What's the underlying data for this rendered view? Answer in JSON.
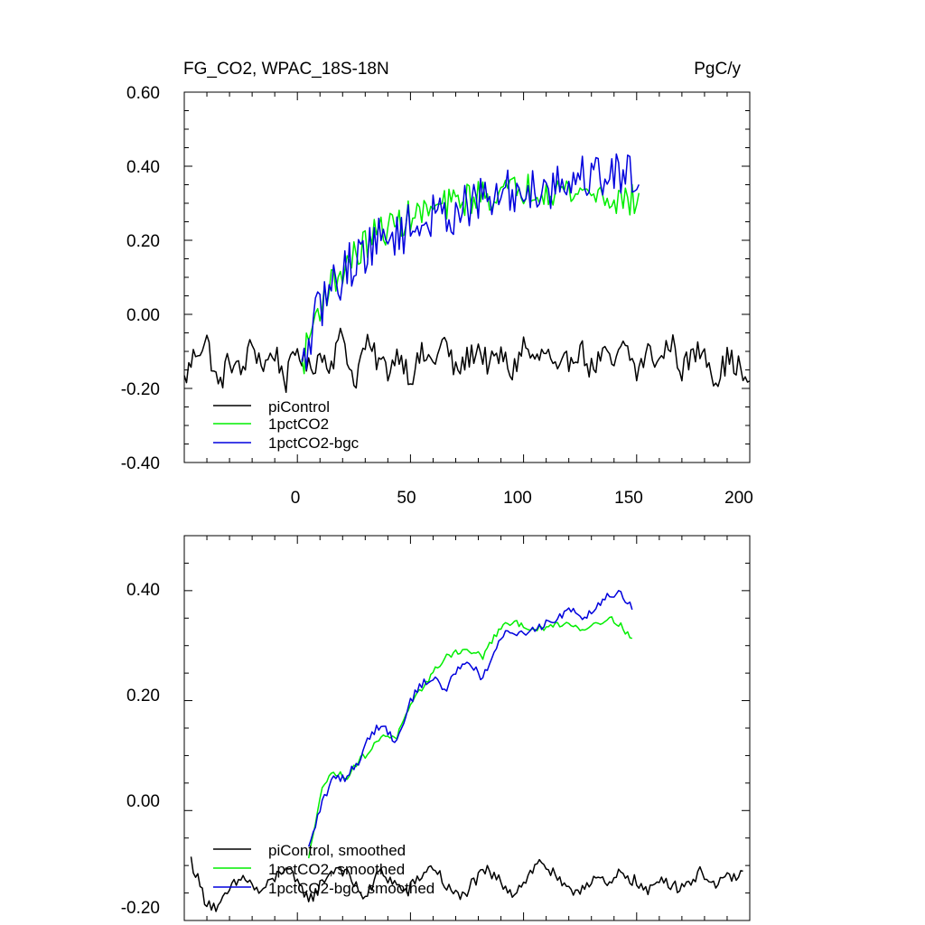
{
  "colors": {
    "piControl": "#000000",
    "onepctCO2": "#00ee00",
    "onepctCO2_bgc": "#0000dd"
  },
  "chart_data": [
    {
      "type": "line",
      "title": "FG_CO2, WPAC_18S-18N",
      "units": "PgC/y",
      "xlim": [
        -50,
        200
      ],
      "ylim": [
        -0.4,
        0.6
      ],
      "x_ticks": [
        "0",
        "50",
        "100",
        "150",
        "200"
      ],
      "y_ticks": [
        "-0.40",
        "-0.20",
        "0.00",
        "0.20",
        "0.40",
        "0.60"
      ],
      "legend_position": "bottom-left",
      "series": [
        {
          "name": "piControl",
          "color": "#000000",
          "x_start": -50,
          "x_end": 200,
          "anchors": [
            -0.18,
            -0.1,
            -0.07,
            -0.2,
            -0.12,
            -0.16,
            -0.08,
            -0.14,
            -0.1,
            -0.18,
            -0.09,
            -0.15,
            -0.11,
            -0.13,
            -0.05,
            -0.19,
            -0.08,
            -0.12,
            -0.15,
            -0.1,
            -0.17,
            -0.11,
            -0.13,
            -0.07,
            -0.16,
            -0.12,
            -0.09,
            -0.14,
            -0.11,
            -0.16,
            -0.08,
            -0.13,
            -0.1,
            -0.17,
            -0.12,
            -0.09,
            -0.15,
            -0.11,
            -0.14,
            -0.08,
            -0.16,
            -0.1,
            -0.13,
            -0.07,
            -0.15,
            -0.11,
            -0.09,
            -0.18,
            -0.12,
            -0.14,
            -0.21
          ],
          "noise": 0.035
        },
        {
          "name": "1pctCO2",
          "color": "#00ee00",
          "x_start": 2,
          "x_end": 151,
          "anchors": [
            -0.14,
            -0.02,
            0.06,
            0.1,
            0.14,
            0.17,
            0.21,
            0.23,
            0.24,
            0.26,
            0.27,
            0.28,
            0.29,
            0.3,
            0.31,
            0.32,
            0.32,
            0.33,
            0.33,
            0.34,
            0.34,
            0.34,
            0.34,
            0.33,
            0.33,
            0.33,
            0.32,
            0.31,
            0.31,
            0.3
          ],
          "noise": 0.045
        },
        {
          "name": "1pctCO2-bgc",
          "color": "#0000dd",
          "x_start": 2,
          "x_end": 151,
          "anchors": [
            -0.16,
            -0.03,
            0.05,
            0.09,
            0.13,
            0.16,
            0.19,
            0.2,
            0.22,
            0.23,
            0.24,
            0.26,
            0.26,
            0.28,
            0.29,
            0.3,
            0.31,
            0.32,
            0.33,
            0.33,
            0.34,
            0.35,
            0.35,
            0.36,
            0.37,
            0.38,
            0.38,
            0.38,
            0.38,
            0.37
          ],
          "noise": 0.065
        }
      ]
    },
    {
      "type": "line",
      "xlim": [
        -50,
        200
      ],
      "ylim": [
        -0.2,
        0.5
      ],
      "y_ticks": [
        "-0.20",
        "0.00",
        "0.20",
        "0.40"
      ],
      "legend_position": "bottom-left",
      "series": [
        {
          "name": "piControl, smoothed",
          "color": "#000000",
          "x_start": -47,
          "x_end": 197,
          "anchors": [
            -0.09,
            -0.16,
            -0.18,
            -0.14,
            -0.12,
            -0.15,
            -0.13,
            -0.1,
            -0.14,
            -0.16,
            -0.12,
            -0.1,
            -0.13,
            -0.16,
            -0.11,
            -0.13,
            -0.15,
            -0.12,
            -0.1,
            -0.14,
            -0.16,
            -0.13,
            -0.11,
            -0.13,
            -0.15,
            -0.12,
            -0.09,
            -0.12,
            -0.15,
            -0.14,
            -0.12,
            -0.14,
            -0.11,
            -0.13,
            -0.15,
            -0.12,
            -0.14,
            -0.13,
            -0.11,
            -0.14,
            -0.12,
            -0.12
          ],
          "noise": 0.012
        },
        {
          "name": "1pctCO2, smoothed",
          "color": "#00ee00",
          "x_start": 5,
          "x_end": 148,
          "anchors": [
            -0.09,
            0.04,
            0.07,
            0.06,
            0.09,
            0.11,
            0.14,
            0.13,
            0.18,
            0.22,
            0.25,
            0.28,
            0.29,
            0.29,
            0.28,
            0.32,
            0.34,
            0.34,
            0.33,
            0.33,
            0.34,
            0.34,
            0.33,
            0.34,
            0.35,
            0.34,
            0.31
          ],
          "noise": 0.006
        },
        {
          "name": "1pctCO2-bgc, smoothed",
          "color": "#0000dd",
          "x_start": 5,
          "x_end": 148,
          "anchors": [
            -0.07,
            0.01,
            0.06,
            0.06,
            0.09,
            0.14,
            0.16,
            0.12,
            0.19,
            0.23,
            0.24,
            0.22,
            0.26,
            0.27,
            0.24,
            0.29,
            0.33,
            0.32,
            0.33,
            0.34,
            0.35,
            0.37,
            0.35,
            0.37,
            0.39,
            0.4,
            0.37
          ],
          "noise": 0.008
        }
      ]
    }
  ]
}
